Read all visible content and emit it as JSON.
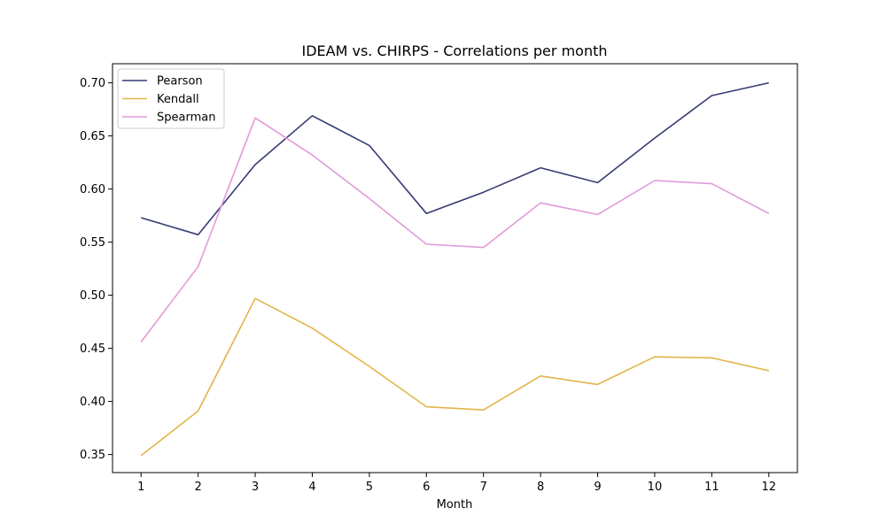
{
  "chart_data": {
    "type": "line",
    "title": "IDEAM vs. CHIRPS - Correlations per month",
    "xlabel": "Month",
    "ylabel": "",
    "x": [
      1,
      2,
      3,
      4,
      5,
      6,
      7,
      8,
      9,
      10,
      11,
      12
    ],
    "xlim": [
      0.5,
      12.5
    ],
    "ylim": [
      0.333,
      0.718
    ],
    "yticks": [
      0.35,
      0.4,
      0.45,
      0.5,
      0.55,
      0.6,
      0.65,
      0.7
    ],
    "grid": false,
    "legend_position": "top-left",
    "series": [
      {
        "name": "Pearson",
        "color": "#363b74",
        "values": [
          0.573,
          0.557,
          0.623,
          0.669,
          0.641,
          0.577,
          0.597,
          0.62,
          0.606,
          0.648,
          0.688,
          0.7
        ]
      },
      {
        "name": "Kendall",
        "color": "#e3b448",
        "values": [
          0.349,
          0.391,
          0.497,
          0.469,
          0.433,
          0.395,
          0.392,
          0.424,
          0.416,
          0.442,
          0.441,
          0.429
        ]
      },
      {
        "name": "Spearman",
        "color": "#e29ad8",
        "values": [
          0.456,
          0.527,
          0.667,
          0.632,
          0.591,
          0.548,
          0.545,
          0.587,
          0.576,
          0.608,
          0.605,
          0.577
        ]
      }
    ]
  }
}
